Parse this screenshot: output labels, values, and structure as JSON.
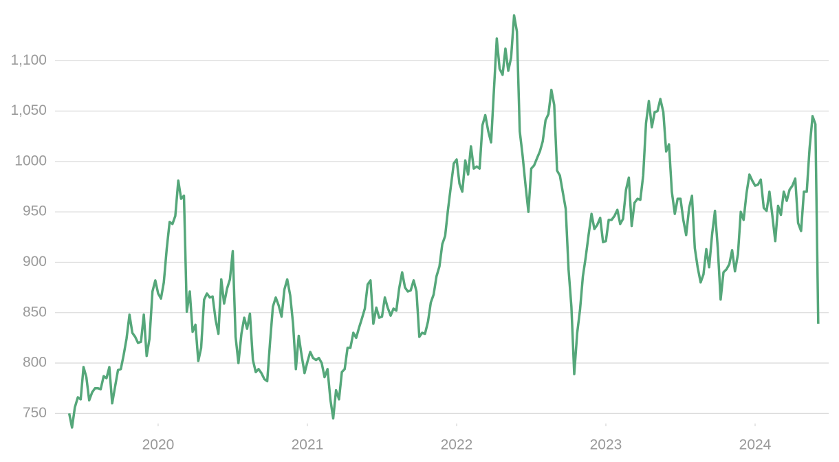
{
  "chart_data": {
    "type": "line",
    "x": [
      2019.404,
      2019.423,
      2019.442,
      2019.462,
      2019.481,
      2019.5,
      2019.519,
      2019.538,
      2019.558,
      2019.577,
      2019.596,
      2019.615,
      2019.635,
      2019.654,
      2019.673,
      2019.692,
      2019.712,
      2019.731,
      2019.75,
      2019.769,
      2019.788,
      2019.808,
      2019.827,
      2019.846,
      2019.865,
      2019.885,
      2019.904,
      2019.923,
      2019.942,
      2019.962,
      2019.981,
      2020.0,
      2020.019,
      2020.038,
      2020.058,
      2020.077,
      2020.096,
      2020.115,
      2020.135,
      2020.154,
      2020.173,
      2020.192,
      2020.212,
      2020.231,
      2020.25,
      2020.269,
      2020.288,
      2020.308,
      2020.327,
      2020.346,
      2020.365,
      2020.385,
      2020.404,
      2020.423,
      2020.442,
      2020.462,
      2020.481,
      2020.5,
      2020.519,
      2020.538,
      2020.558,
      2020.577,
      2020.596,
      2020.615,
      2020.635,
      2020.654,
      2020.673,
      2020.692,
      2020.712,
      2020.731,
      2020.75,
      2020.769,
      2020.788,
      2020.808,
      2020.827,
      2020.846,
      2020.865,
      2020.885,
      2020.904,
      2020.923,
      2020.942,
      2020.962,
      2020.981,
      2021.0,
      2021.019,
      2021.038,
      2021.058,
      2021.077,
      2021.096,
      2021.115,
      2021.135,
      2021.154,
      2021.173,
      2021.192,
      2021.212,
      2021.231,
      2021.25,
      2021.269,
      2021.288,
      2021.308,
      2021.327,
      2021.346,
      2021.365,
      2021.385,
      2021.404,
      2021.423,
      2021.442,
      2021.462,
      2021.481,
      2021.5,
      2021.519,
      2021.538,
      2021.558,
      2021.577,
      2021.596,
      2021.615,
      2021.635,
      2021.654,
      2021.673,
      2021.692,
      2021.712,
      2021.731,
      2021.75,
      2021.769,
      2021.788,
      2021.808,
      2021.827,
      2021.846,
      2021.865,
      2021.885,
      2021.904,
      2021.923,
      2021.942,
      2021.962,
      2021.981,
      2022.0,
      2022.019,
      2022.038,
      2022.058,
      2022.077,
      2022.096,
      2022.115,
      2022.135,
      2022.154,
      2022.173,
      2022.192,
      2022.212,
      2022.231,
      2022.25,
      2022.269,
      2022.288,
      2022.308,
      2022.327,
      2022.346,
      2022.365,
      2022.385,
      2022.404,
      2022.423,
      2022.442,
      2022.462,
      2022.481,
      2022.5,
      2022.519,
      2022.538,
      2022.558,
      2022.577,
      2022.596,
      2022.615,
      2022.635,
      2022.654,
      2022.673,
      2022.692,
      2022.712,
      2022.731,
      2022.75,
      2022.769,
      2022.788,
      2022.808,
      2022.827,
      2022.846,
      2022.865,
      2022.885,
      2022.904,
      2022.923,
      2022.942,
      2022.962,
      2022.981,
      2023.0,
      2023.019,
      2023.038,
      2023.058,
      2023.077,
      2023.096,
      2023.115,
      2023.135,
      2023.154,
      2023.173,
      2023.192,
      2023.212,
      2023.231,
      2023.25,
      2023.269,
      2023.288,
      2023.308,
      2023.327,
      2023.346,
      2023.365,
      2023.385,
      2023.404,
      2023.423,
      2023.442,
      2023.462,
      2023.481,
      2023.5,
      2023.519,
      2023.538,
      2023.558,
      2023.577,
      2023.596,
      2023.615,
      2023.635,
      2023.654,
      2023.673,
      2023.692,
      2023.712,
      2023.731,
      2023.75,
      2023.769,
      2023.788,
      2023.808,
      2023.827,
      2023.846,
      2023.865,
      2023.885,
      2023.904,
      2023.923,
      2023.942,
      2023.962,
      2023.981,
      2024.0,
      2024.019,
      2024.038,
      2024.058,
      2024.077,
      2024.096,
      2024.115,
      2024.135,
      2024.154,
      2024.173,
      2024.192,
      2024.212,
      2024.231,
      2024.25,
      2024.269,
      2024.288,
      2024.308,
      2024.327,
      2024.346,
      2024.365,
      2024.385,
      2024.404,
      2024.423
    ],
    "series": [
      {
        "color": "#55a77a",
        "values": [
          750,
          736,
          756,
          766,
          764,
          796,
          786,
          763,
          771,
          775,
          775,
          774,
          787,
          785,
          796,
          760,
          777,
          793,
          794,
          808,
          824,
          848,
          830,
          826,
          820,
          821,
          848,
          807,
          824,
          871,
          882,
          869,
          864,
          880,
          914,
          940,
          938,
          946,
          981,
          963,
          966,
          851,
          871,
          831,
          838,
          802,
          815,
          863,
          869,
          865,
          866,
          843,
          829,
          883,
          859,
          874,
          883,
          911,
          826,
          800,
          829,
          845,
          834,
          849,
          803,
          791,
          794,
          790,
          784,
          782,
          821,
          856,
          865,
          857,
          846,
          873,
          883,
          867,
          839,
          794,
          827,
          807,
          790,
          801,
          811,
          805,
          803,
          805,
          800,
          786,
          794,
          764,
          745,
          773,
          764,
          791,
          794,
          815,
          815,
          830,
          825,
          835,
          844,
          854,
          878,
          882,
          839,
          855,
          845,
          846,
          865,
          855,
          847,
          854,
          852,
          874,
          890,
          875,
          871,
          872,
          882,
          871,
          826,
          830,
          829,
          841,
          860,
          868,
          886,
          896,
          918,
          926,
          952,
          976,
          998,
          1002,
          978,
          970,
          1001,
          987,
          1015,
          993,
          995,
          993,
          1036,
          1046,
          1030,
          1019,
          1071,
          1122,
          1092,
          1086,
          1112,
          1090,
          1103,
          1145,
          1129,
          1030,
          1006,
          976,
          950,
          993,
          996,
          1003,
          1010,
          1020,
          1041,
          1047,
          1071,
          1056,
          991,
          986,
          969,
          953,
          893,
          856,
          789,
          830,
          853,
          886,
          905,
          928,
          948,
          933,
          937,
          944,
          920,
          921,
          942,
          942,
          946,
          952,
          938,
          943,
          972,
          984,
          936,
          959,
          963,
          962,
          986,
          1038,
          1060,
          1034,
          1049,
          1050,
          1062,
          1049,
          1010,
          1017,
          970,
          948,
          963,
          963,
          942,
          927,
          954,
          966,
          914,
          895,
          880,
          888,
          913,
          895,
          928,
          951,
          914,
          863,
          890,
          893,
          898,
          912,
          891,
          908,
          950,
          942,
          968,
          987,
          981,
          976,
          977,
          982,
          954,
          951,
          970,
          947,
          921,
          956,
          947,
          970,
          961,
          972,
          976,
          983,
          939,
          931,
          970,
          970,
          1013,
          1045,
          1037,
          839
        ]
      }
    ],
    "xlim": [
      2019.309,
      2024.493
    ],
    "xticks": [
      2020,
      2021,
      2022,
      2023,
      2024
    ],
    "ylim": [
      740,
      1150
    ],
    "yticks": [
      750,
      800,
      850,
      900,
      950,
      1000,
      {
        "value": 1050,
        "label": "1,050"
      },
      {
        "value": 1100,
        "label": "1,100"
      }
    ],
    "grid": true
  }
}
